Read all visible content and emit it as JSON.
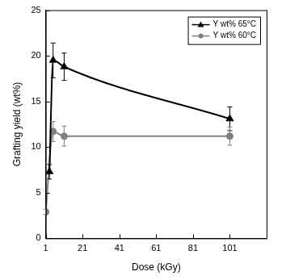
{
  "chart_data": {
    "type": "line",
    "x_label": "Dose (kGy)",
    "y_label": "Grafting yield (wt%)",
    "xlim": [
      1,
      121
    ],
    "xticks": [
      1,
      21,
      41,
      61,
      81,
      101
    ],
    "ylim": [
      0,
      25
    ],
    "yticks": [
      0,
      5,
      10,
      15,
      20,
      25
    ],
    "grid": false,
    "legend": "upper right",
    "series": [
      {
        "name": "Y wt% 65°C",
        "color": "#000000",
        "marker": "triangle",
        "line_style": "solid",
        "x": [
          3,
          5,
          11,
          101
        ],
        "values": [
          7.3,
          19.5,
          18.8,
          13.1
        ],
        "errors": [
          0.8,
          1.9,
          1.5,
          1.3
        ]
      },
      {
        "name": "Y wt% 60°C",
        "color": "#808080",
        "marker": "circle",
        "line_style": "solid",
        "x": [
          1,
          5,
          11,
          101
        ],
        "values": [
          2.9,
          11.7,
          11.2,
          11.2
        ],
        "errors": [
          0.3,
          1.1,
          1.1,
          1.0
        ]
      }
    ]
  }
}
